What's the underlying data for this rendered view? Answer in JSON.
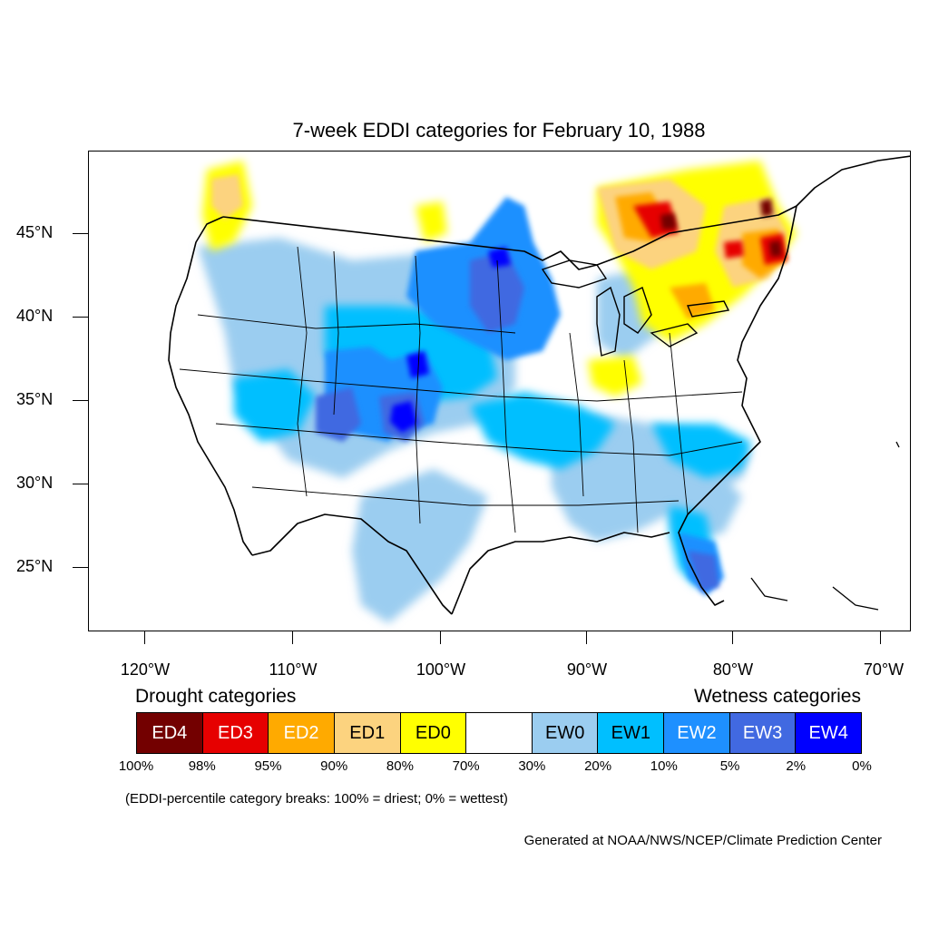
{
  "title": "7-week EDDI categories for February 10, 1988",
  "lat_labels": [
    "45°N",
    "40°N",
    "35°N",
    "30°N",
    "25°N"
  ],
  "lon_labels": [
    "120°W",
    "110°W",
    "100°W",
    "90°W",
    "80°W",
    "70°W"
  ],
  "legend": {
    "drought_heading": "Drought categories",
    "wetness_heading": "Wetness categories",
    "categories": [
      {
        "label": "ED4",
        "color": "#730000",
        "text_color": "#ffffff"
      },
      {
        "label": "ED3",
        "color": "#e60000",
        "text_color": "#ffffff"
      },
      {
        "label": "ED2",
        "color": "#ffaa00",
        "text_color": "#ffffff"
      },
      {
        "label": "ED1",
        "color": "#fcd37f",
        "text_color": "#000000"
      },
      {
        "label": "ED0",
        "color": "#ffff00",
        "text_color": "#000000"
      },
      {
        "label": "",
        "color": "#ffffff",
        "text_color": "#000000"
      },
      {
        "label": "EW0",
        "color": "#9bcdf0",
        "text_color": "#000000"
      },
      {
        "label": "EW1",
        "color": "#00bfff",
        "text_color": "#000000"
      },
      {
        "label": "EW2",
        "color": "#1e90ff",
        "text_color": "#ffffff"
      },
      {
        "label": "EW3",
        "color": "#4169e1",
        "text_color": "#ffffff"
      },
      {
        "label": "EW4",
        "color": "#0000ff",
        "text_color": "#ffffff"
      }
    ],
    "percent_breaks": [
      "100%",
      "98%",
      "95%",
      "90%",
      "80%",
      "70%",
      "30%",
      "20%",
      "10%",
      "5%",
      "2%",
      "0%"
    ]
  },
  "note": "(EDDI-percentile category breaks: 100% = driest; 0% = wettest)",
  "credit": "Generated at NOAA/NWS/NCEP/Climate Prediction Center"
}
